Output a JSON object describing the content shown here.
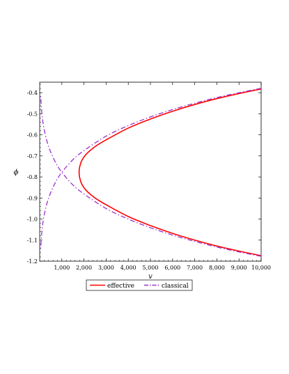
{
  "chart_data": {
    "type": "line",
    "title": "",
    "xlabel": "v",
    "ylabel": "ϕ",
    "xlim": [
      0,
      10000
    ],
    "ylim": [
      -1.2,
      -0.35
    ],
    "x_ticks": [
      1000,
      2000,
      3000,
      4000,
      5000,
      6000,
      7000,
      8000,
      9000,
      10000
    ],
    "x_tick_labels": [
      "1,000",
      "2,000",
      "3,000",
      "4,000",
      "5,000",
      "6,000",
      "7,000",
      "8,000",
      "9,000",
      "10,000"
    ],
    "y_ticks": [
      -0.4,
      -0.5,
      -0.6,
      -0.7,
      -0.8,
      -0.9,
      -1.0,
      -1.1,
      -1.2
    ],
    "y_tick_labels": [
      "-0.4",
      "-0.5",
      "-0.6",
      "-0.7",
      "-0.8",
      "-0.9",
      "-1.0",
      "-1.1",
      "-1.2"
    ],
    "grid": false,
    "legend_position": "bottom",
    "series": [
      {
        "name": "effective",
        "color": "#ff0000",
        "style": "solid",
        "x": [
          10000,
          9000,
          8000,
          7000,
          6000,
          5000,
          4000,
          3000,
          2500,
          2100,
          1900,
          1800,
          1780,
          1800,
          1900,
          2100,
          2500,
          3000,
          4000,
          5000,
          6000,
          7000,
          8000,
          9000,
          10000
        ],
        "y": [
          -0.382,
          -0.404,
          -0.428,
          -0.456,
          -0.488,
          -0.525,
          -0.568,
          -0.624,
          -0.656,
          -0.692,
          -0.722,
          -0.755,
          -0.778,
          -0.801,
          -0.834,
          -0.864,
          -0.9,
          -0.932,
          -0.988,
          -1.031,
          -1.068,
          -1.1,
          -1.128,
          -1.152,
          -1.174
        ]
      },
      {
        "name": "classical",
        "color": "#9932cc",
        "style": "dashdot",
        "x": [
          10000,
          9000,
          8000,
          7000,
          6000,
          5000,
          4000,
          3000,
          2000,
          1500,
          1000,
          700,
          400,
          200,
          100,
          40
        ],
        "y": [
          -0.379,
          -0.4,
          -0.423,
          -0.45,
          -0.48,
          -0.515,
          -0.556,
          -0.606,
          -0.675,
          -0.718,
          -0.778,
          -0.828,
          -0.901,
          -0.982,
          -1.057,
          -1.151
        ]
      },
      {
        "name": "classical",
        "color": "#9932cc",
        "style": "dashdot",
        "x": [
          10000,
          9000,
          8000,
          7000,
          6000,
          5000,
          4000,
          3000,
          2000,
          1500,
          1000,
          700,
          400,
          200,
          100,
          40
        ],
        "y": [
          -1.177,
          -1.156,
          -1.133,
          -1.106,
          -1.076,
          -1.041,
          -1.0,
          -0.95,
          -0.881,
          -0.838,
          -0.778,
          -0.728,
          -0.655,
          -0.574,
          -0.499,
          -0.405
        ]
      }
    ]
  }
}
